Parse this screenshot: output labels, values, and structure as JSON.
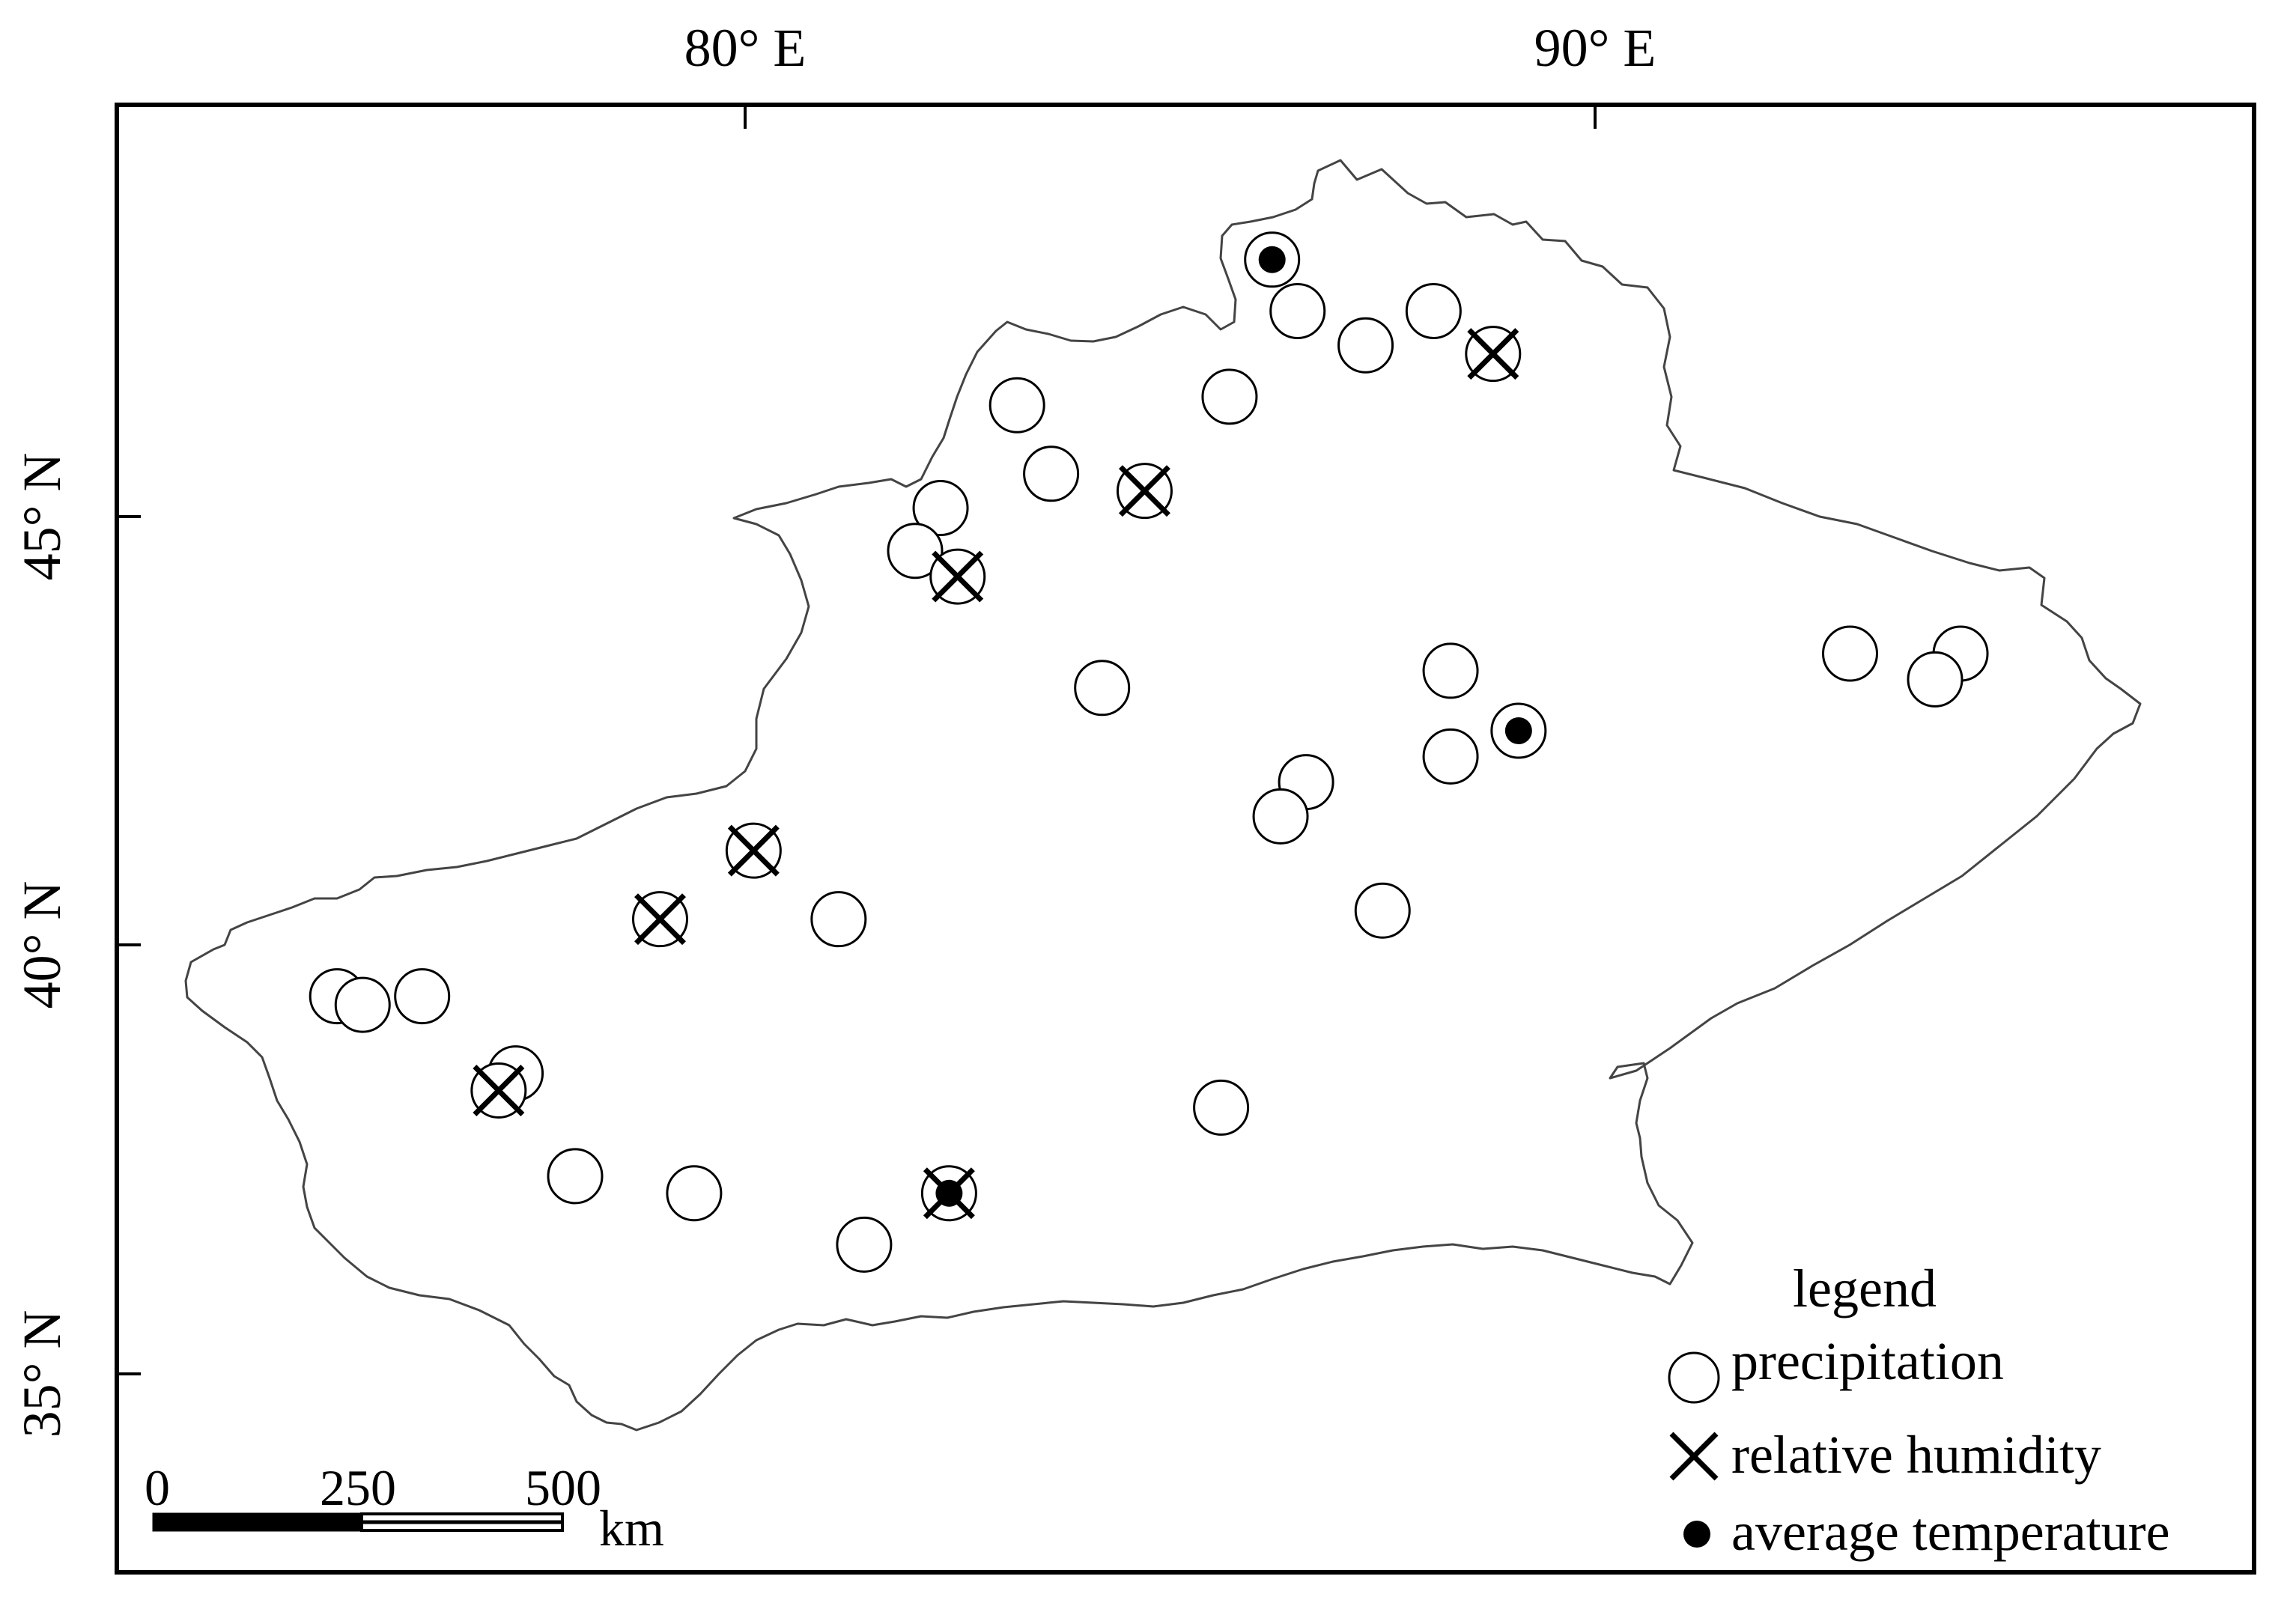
{
  "axes": {
    "top_labels": [
      "80° E",
      "90° E"
    ],
    "left_labels": [
      "45° N",
      "40° N",
      "35° N"
    ]
  },
  "legend": {
    "title": "legend",
    "items": [
      {
        "symbol": "open-circle",
        "label": "precipitation"
      },
      {
        "symbol": "x-cross",
        "label": "relative humidity"
      },
      {
        "symbol": "filled-dot",
        "label": "average temperature"
      }
    ]
  },
  "scale_bar": {
    "ticks": [
      "0",
      "250",
      "500"
    ],
    "unit": "km"
  },
  "stations": [
    {
      "lon": 86.2,
      "lat": 48.0,
      "types": [
        "precipitation",
        "average temperature"
      ]
    },
    {
      "lon": 86.5,
      "lat": 47.4,
      "types": [
        "precipitation"
      ]
    },
    {
      "lon": 87.3,
      "lat": 47.0,
      "types": [
        "precipitation"
      ]
    },
    {
      "lon": 88.1,
      "lat": 47.4,
      "types": [
        "precipitation"
      ]
    },
    {
      "lon": 88.8,
      "lat": 46.9,
      "types": [
        "precipitation",
        "relative humidity"
      ]
    },
    {
      "lon": 85.7,
      "lat": 46.4,
      "types": [
        "precipitation"
      ]
    },
    {
      "lon": 83.2,
      "lat": 46.3,
      "types": [
        "precipitation"
      ]
    },
    {
      "lon": 83.6,
      "lat": 45.5,
      "types": [
        "precipitation"
      ]
    },
    {
      "lon": 84.7,
      "lat": 45.3,
      "types": [
        "precipitation",
        "relative humidity"
      ]
    },
    {
      "lon": 82.3,
      "lat": 45.1,
      "types": [
        "precipitation"
      ]
    },
    {
      "lon": 82.0,
      "lat": 44.6,
      "types": [
        "precipitation"
      ]
    },
    {
      "lon": 82.5,
      "lat": 44.3,
      "types": [
        "precipitation",
        "relative humidity"
      ]
    },
    {
      "lon": 84.2,
      "lat": 43.0,
      "types": [
        "precipitation"
      ]
    },
    {
      "lon": 88.3,
      "lat": 43.2,
      "types": [
        "precipitation"
      ]
    },
    {
      "lon": 89.1,
      "lat": 42.5,
      "types": [
        "precipitation",
        "average temperature"
      ]
    },
    {
      "lon": 88.3,
      "lat": 42.2,
      "types": [
        "precipitation"
      ]
    },
    {
      "lon": 86.6,
      "lat": 41.9,
      "types": [
        "precipitation"
      ]
    },
    {
      "lon": 86.3,
      "lat": 41.5,
      "types": [
        "precipitation"
      ]
    },
    {
      "lon": 87.5,
      "lat": 40.4,
      "types": [
        "precipitation"
      ]
    },
    {
      "lon": 93.0,
      "lat": 43.4,
      "types": [
        "precipitation"
      ]
    },
    {
      "lon": 94.3,
      "lat": 43.4,
      "types": [
        "precipitation"
      ]
    },
    {
      "lon": 94.0,
      "lat": 43.1,
      "types": [
        "precipitation"
      ]
    },
    {
      "lon": 80.1,
      "lat": 41.1,
      "types": [
        "precipitation",
        "relative humidity"
      ]
    },
    {
      "lon": 79.0,
      "lat": 40.3,
      "types": [
        "precipitation",
        "relative humidity"
      ]
    },
    {
      "lon": 81.1,
      "lat": 40.3,
      "types": [
        "precipitation"
      ]
    },
    {
      "lon": 75.2,
      "lat": 39.4,
      "types": [
        "precipitation"
      ]
    },
    {
      "lon": 75.5,
      "lat": 39.3,
      "types": [
        "precipitation"
      ]
    },
    {
      "lon": 76.2,
      "lat": 39.4,
      "types": [
        "precipitation"
      ]
    },
    {
      "lon": 77.3,
      "lat": 38.5,
      "types": [
        "precipitation"
      ]
    },
    {
      "lon": 77.1,
      "lat": 38.3,
      "types": [
        "precipitation",
        "relative humidity"
      ]
    },
    {
      "lon": 78.0,
      "lat": 37.3,
      "types": [
        "precipitation"
      ]
    },
    {
      "lon": 79.4,
      "lat": 37.1,
      "types": [
        "precipitation"
      ]
    },
    {
      "lon": 81.4,
      "lat": 36.5,
      "types": [
        "precipitation"
      ]
    },
    {
      "lon": 82.4,
      "lat": 37.1,
      "types": [
        "precipitation",
        "relative humidity",
        "average temperature"
      ]
    },
    {
      "lon": 85.6,
      "lat": 38.1,
      "types": [
        "precipitation"
      ]
    }
  ]
}
